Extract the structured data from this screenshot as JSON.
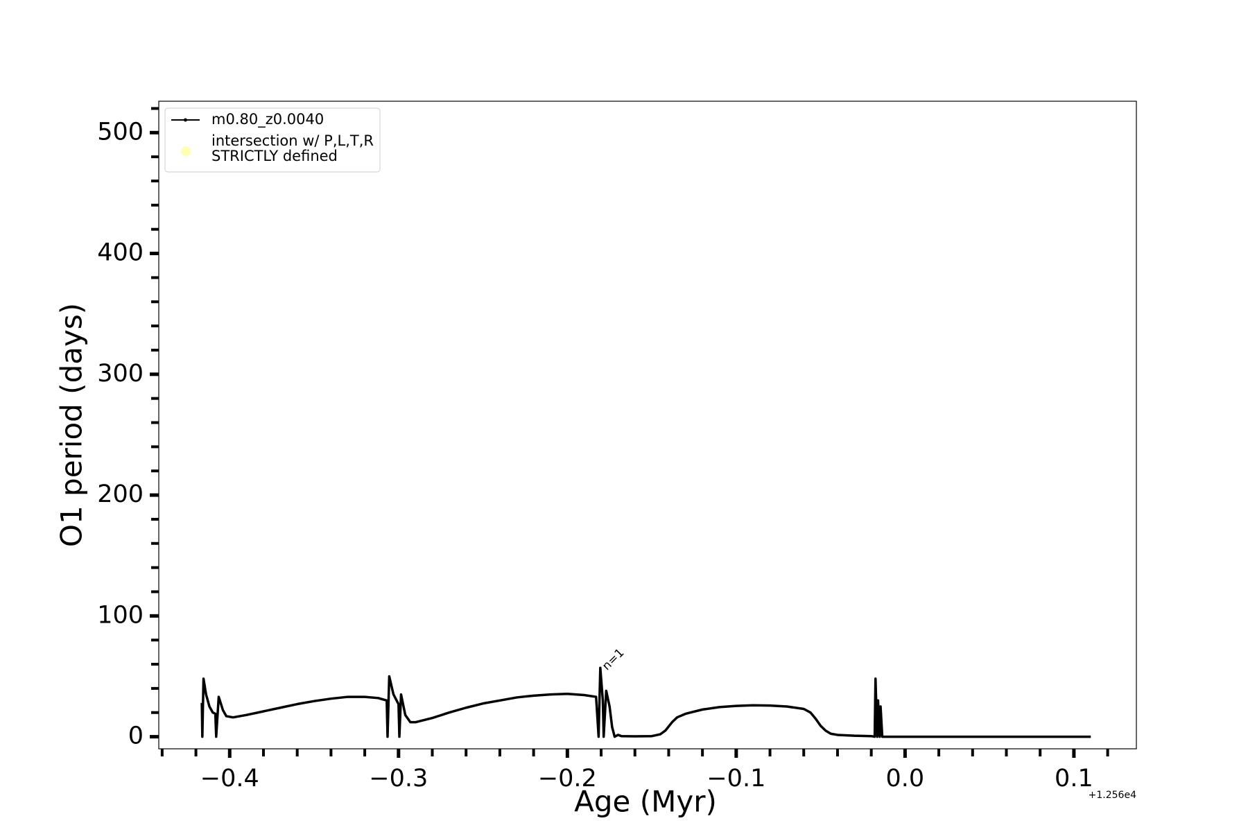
{
  "chart_data": {
    "type": "line",
    "xlabel": "Age (Myr)",
    "ylabel": "O1 period (days)",
    "x_offset_label": "+1.256e4",
    "annotation": "n=1",
    "xlim": [
      -0.442,
      0.137
    ],
    "ylim": [
      -10,
      526
    ],
    "xticks": [
      {
        "value": -0.4,
        "label": "−0.4"
      },
      {
        "value": -0.3,
        "label": "−0.3"
      },
      {
        "value": -0.2,
        "label": "−0.2"
      },
      {
        "value": -0.1,
        "label": "−0.1"
      },
      {
        "value": 0,
        "label": "0.0"
      },
      0.1
    ],
    "xminorticks": [
      -0.44,
      -0.42,
      -0.38,
      -0.36,
      -0.34,
      -0.32,
      -0.28,
      -0.26,
      -0.24,
      -0.22,
      -0.18,
      -0.16,
      -0.14,
      -0.12,
      -0.08,
      -0.06,
      -0.04,
      -0.02,
      0.02,
      0.04,
      0.06,
      0.08,
      0.12
    ],
    "yticks": [
      0,
      100,
      200,
      300,
      400,
      500
    ],
    "yminorticks": [
      20,
      40,
      60,
      80,
      120,
      140,
      160,
      180,
      220,
      240,
      260,
      280,
      320,
      340,
      360,
      380,
      420,
      440,
      460,
      480,
      520
    ],
    "series": [
      {
        "name": "m0.80_z0.0040",
        "color": "#000000",
        "x": [
          -0.4165,
          -0.4162,
          -0.4155,
          -0.414,
          -0.412,
          -0.41,
          -0.4085,
          -0.408,
          -0.4065,
          -0.404,
          -0.402,
          -0.398,
          -0.39,
          -0.38,
          -0.37,
          -0.36,
          -0.35,
          -0.34,
          -0.33,
          -0.32,
          -0.312,
          -0.307,
          -0.3065,
          -0.3055,
          -0.303,
          -0.3,
          -0.2995,
          -0.2985,
          -0.296,
          -0.293,
          -0.29,
          -0.28,
          -0.27,
          -0.26,
          -0.25,
          -0.24,
          -0.23,
          -0.22,
          -0.21,
          -0.2,
          -0.19,
          -0.183,
          -0.1815,
          -0.1805,
          -0.179,
          -0.1785,
          -0.177,
          -0.175,
          -0.1735,
          -0.172,
          -0.17,
          -0.168,
          -0.16,
          -0.15,
          -0.145,
          -0.142,
          -0.138,
          -0.135,
          -0.13,
          -0.12,
          -0.11,
          -0.1,
          -0.09,
          -0.08,
          -0.07,
          -0.06,
          -0.056,
          -0.053,
          -0.05,
          -0.047,
          -0.044,
          -0.04,
          -0.03,
          -0.02,
          -0.018,
          -0.0175,
          -0.0165,
          -0.016,
          -0.015,
          -0.0145,
          -0.0135,
          -0.01,
          0,
          0.05,
          0.11
        ],
        "values": [
          28,
          0,
          48,
          35,
          25,
          20,
          19,
          0,
          33,
          22,
          17,
          16,
          18,
          21,
          24,
          27,
          29.5,
          31.5,
          33,
          33,
          32,
          30,
          0,
          50,
          35,
          27,
          0,
          35,
          18,
          12,
          12,
          15.5,
          20,
          24,
          27.5,
          30,
          32.5,
          34,
          35,
          35.5,
          34.5,
          33,
          0,
          57,
          30,
          0,
          38,
          25,
          8,
          0,
          1.5,
          0.5,
          0.3,
          0.5,
          2,
          5,
          12,
          16,
          19,
          22.5,
          24.5,
          25.5,
          26,
          25.8,
          25,
          23,
          20,
          15,
          9,
          5,
          2.5,
          1.5,
          0.8,
          0.5,
          0,
          48,
          0,
          30,
          0,
          25,
          0,
          0,
          0,
          0,
          0
        ]
      },
      {
        "name": "intersection w/ P,L,T,R\nSTRICTLY defined",
        "color": "#ffffb3",
        "x": [],
        "values": []
      }
    ]
  }
}
